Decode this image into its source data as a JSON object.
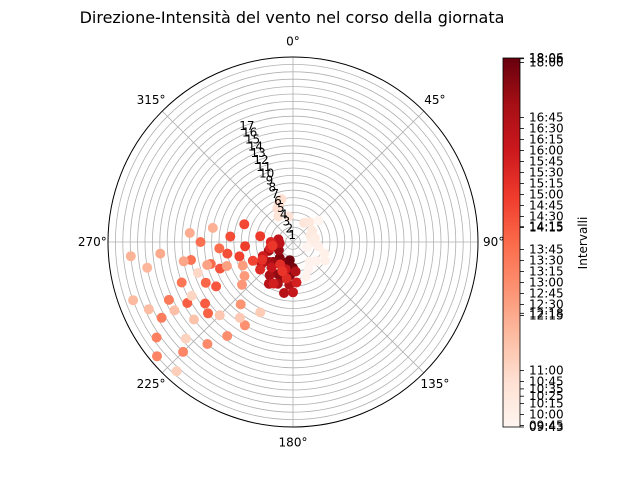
{
  "chart_data": {
    "type": "scatter",
    "coordinate_system": "polar",
    "title": "Direzione-Intensità del vento nel corso della giornata",
    "theta_direction": "clockwise",
    "theta_zero_location": "N",
    "theta_ticks": [
      "0°",
      "45°",
      "90°",
      "135°",
      "180°",
      "225°",
      "270°",
      "315°"
    ],
    "theta_tick_angles": [
      0,
      315,
      270,
      225,
      180,
      135,
      90,
      45
    ],
    "r_ticks": [
      "1",
      "2",
      "3",
      "4",
      "5",
      "6",
      "7",
      "8",
      "9",
      "10",
      "11",
      "12",
      "13",
      "14",
      "15",
      "16",
      "17"
    ],
    "r_tick_values": [
      1,
      2,
      3,
      4,
      5,
      6,
      7,
      8,
      9,
      10,
      11,
      12,
      13,
      14,
      15,
      16,
      17
    ],
    "rlim": [
      0,
      25
    ],
    "grid": true,
    "colormap": "Reds",
    "colorbar": {
      "label": "Intervalli",
      "ticks": [
        "09:43",
        "09:45",
        "10:00",
        "10:15",
        "10:25",
        "10:35",
        "10:45",
        "11:00",
        "12:15",
        "12:18",
        "12:30",
        "12:45",
        "13:00",
        "13:15",
        "13:30",
        "13:45",
        "14:15",
        "14:15",
        "14:30",
        "14:45",
        "15:00",
        "15:15",
        "15:30",
        "15:45",
        "16:00",
        "16:15",
        "16:30",
        "16:45",
        "18:00",
        "18:05",
        "18:06"
      ],
      "tick_values": [
        583,
        585,
        600,
        615,
        625,
        635,
        645,
        660,
        735,
        738,
        750,
        765,
        780,
        795,
        810,
        825,
        855,
        856,
        870,
        885,
        900,
        915,
        930,
        945,
        960,
        975,
        990,
        1005,
        1080,
        1085,
        1086
      ],
      "range": [
        583,
        1086
      ]
    },
    "series": [
      {
        "fields": [
          "direction_deg",
          "intensity",
          "time_min"
        ],
        "points": [
          [
            170,
            2.5,
            1080
          ],
          [
            160,
            3.0,
            1075
          ],
          [
            180,
            3.5,
            1070
          ],
          [
            150,
            3.2,
            1065
          ],
          [
            140,
            2.8,
            1060
          ],
          [
            175,
            4.5,
            1055
          ],
          [
            165,
            5.0,
            1050
          ],
          [
            155,
            4.8,
            1045
          ],
          [
            135,
            3.8,
            1040
          ],
          [
            120,
            2.2,
            1035
          ],
          [
            100,
            2.5,
            1030
          ],
          [
            110,
            3.5,
            1025
          ],
          [
            130,
            4.2,
            1020
          ],
          [
            145,
            5.5,
            1015
          ],
          [
            160,
            6.0,
            1010
          ],
          [
            175,
            5.8,
            1005
          ],
          [
            185,
            4.0,
            1000
          ],
          [
            170,
            7.0,
            995
          ],
          [
            150,
            6.5,
            990
          ],
          [
            95,
            1.8,
            985
          ],
          [
            80,
            2.0,
            980
          ],
          [
            125,
            5.2,
            975
          ],
          [
            180,
            6.8,
            970
          ],
          [
            140,
            4.5,
            965
          ],
          [
            165,
            3.8,
            960
          ],
          [
            115,
            4.5,
            955
          ],
          [
            155,
            6.2,
            950
          ],
          [
            185,
            5.5,
            945
          ],
          [
            105,
            3.2,
            940
          ],
          [
            90,
            3.0,
            935
          ],
          [
            130,
            5.8,
            930
          ],
          [
            170,
            5.0,
            925
          ],
          [
            150,
            3.5,
            920
          ],
          [
            120,
            4.8,
            915
          ],
          [
            160,
            4.2,
            910
          ],
          [
            100,
            2.8,
            905
          ],
          [
            80,
            4.5,
            900
          ],
          [
            95,
            6.5,
            895
          ],
          [
            105,
            7.5,
            890
          ],
          [
            115,
            6.0,
            885
          ],
          [
            70,
            7.0,
            880
          ],
          [
            85,
            8.5,
            875
          ],
          [
            100,
            9.0,
            870
          ],
          [
            110,
            10.5,
            865
          ],
          [
            120,
            12.0,
            860
          ],
          [
            125,
            14.5,
            855
          ],
          [
            120,
            16.5,
            850
          ],
          [
            130,
            15.0,
            845
          ],
          [
            115,
            13.0,
            840
          ],
          [
            105,
            11.5,
            835
          ],
          [
            95,
            10.0,
            830
          ],
          [
            90,
            12.5,
            825
          ],
          [
            100,
            14.0,
            820
          ],
          [
            110,
            16.0,
            815
          ],
          [
            115,
            18.5,
            810
          ],
          [
            120,
            20.5,
            805
          ],
          [
            125,
            22.5,
            800
          ],
          [
            130,
            24.0,
            795
          ],
          [
            135,
            21.0,
            790
          ],
          [
            140,
            18.0,
            785
          ],
          [
            145,
            15.5,
            780
          ],
          [
            150,
            13.0,
            775
          ],
          [
            140,
            11.0,
            770
          ],
          [
            130,
            9.0,
            765
          ],
          [
            125,
            8.0,
            760
          ],
          [
            115,
            7.5,
            755
          ],
          [
            110,
            9.5,
            750
          ],
          [
            105,
            12.0,
            745
          ],
          [
            100,
            15.0,
            740
          ],
          [
            95,
            18.0,
            735
          ],
          [
            85,
            14.0,
            730
          ],
          [
            80,
            11.0,
            725
          ],
          [
            95,
            22.0,
            720
          ],
          [
            100,
            20.0,
            715
          ],
          [
            110,
            23.0,
            710
          ],
          [
            115,
            21.5,
            705
          ],
          [
            120,
            18.5,
            700
          ],
          [
            128,
            17.0,
            695
          ],
          [
            135,
            14.0,
            690
          ],
          [
            145,
            12.5,
            685
          ],
          [
            155,
            10.5,
            680
          ],
          [
            138,
            23.5,
            675
          ],
          [
            132,
            19.5,
            670
          ],
          [
            118,
            15.5,
            665
          ],
          [
            108,
            13.5,
            660
          ],
          [
            20,
            5.5,
            655
          ],
          [
            15,
            6.0,
            650
          ],
          [
            25,
            5.0,
            645
          ],
          [
            10,
            3.5,
            640
          ],
          [
            30,
            4.0,
            635
          ],
          [
            330,
            3.0,
            630
          ],
          [
            320,
            3.5,
            625
          ],
          [
            300,
            3.0,
            620
          ],
          [
            290,
            2.5,
            615
          ],
          [
            280,
            3.0,
            610
          ],
          [
            270,
            2.5,
            605
          ],
          [
            260,
            3.5,
            600
          ],
          [
            250,
            4.5,
            598
          ],
          [
            240,
            5.0,
            596
          ],
          [
            230,
            4.0,
            594
          ],
          [
            220,
            3.5,
            592
          ],
          [
            210,
            4.2,
            590
          ],
          [
            200,
            5.0,
            588
          ],
          [
            250,
            2.0,
            586
          ],
          [
            310,
            4.5,
            584
          ]
        ]
      }
    ]
  }
}
